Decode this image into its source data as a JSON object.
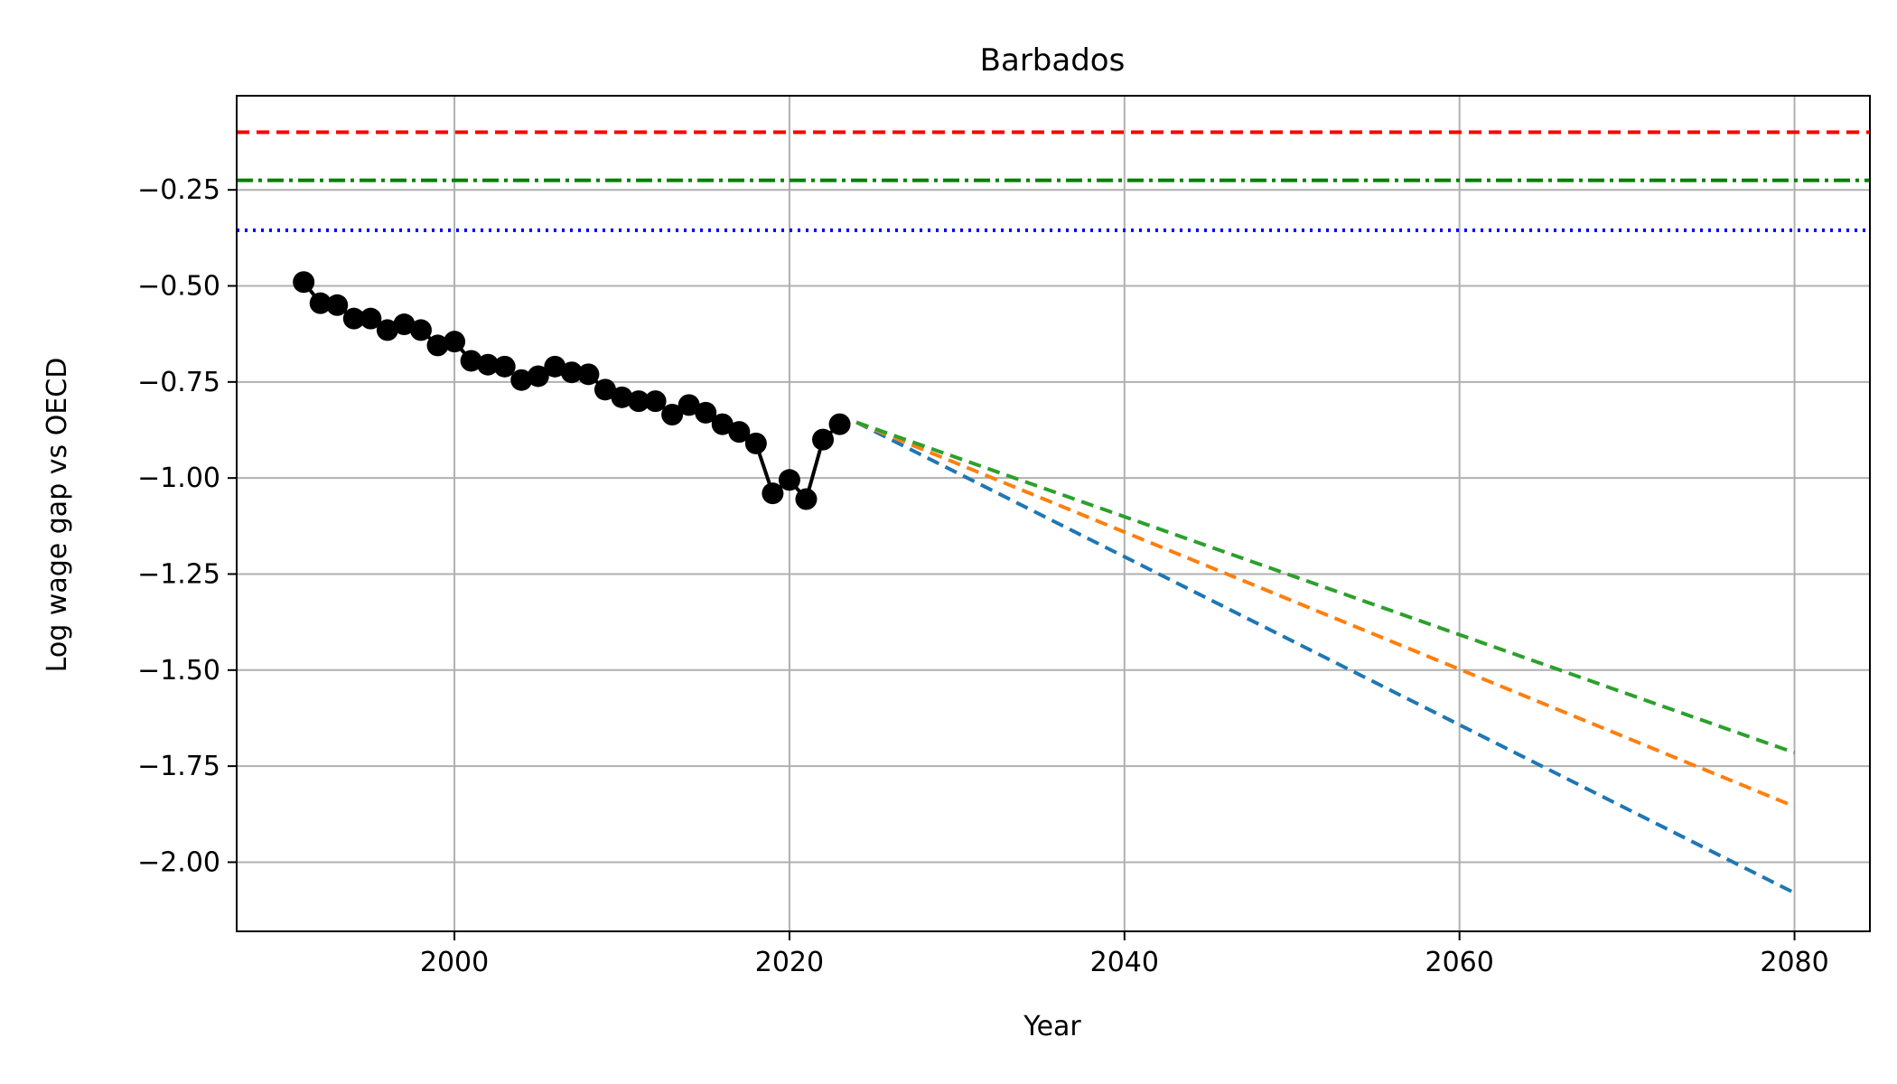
{
  "chart_data": {
    "type": "line",
    "title": "Barbados",
    "xlabel": "Year",
    "ylabel": "Log wage gap vs OECD",
    "xlim": [
      1987,
      2084.5
    ],
    "ylim": [
      -2.18,
      -0.005
    ],
    "xticks": [
      2000,
      2020,
      2040,
      2060,
      2080
    ],
    "yticks": [
      -0.25,
      -0.5,
      -0.75,
      -1.0,
      -1.25,
      -1.5,
      -1.75,
      -2.0
    ],
    "xtick_labels": [
      "2000",
      "2020",
      "2040",
      "2060",
      "2080"
    ],
    "ytick_labels": [
      "−0.25",
      "−0.50",
      "−0.75",
      "−1.00",
      "−1.25",
      "−1.50",
      "−1.75",
      "−2.00"
    ],
    "grid": true,
    "reference_lines": [
      {
        "y": -0.1,
        "color": "#ff0000",
        "style": "dashed"
      },
      {
        "y": -0.225,
        "color": "#008000",
        "style": "dashdot"
      },
      {
        "y": -0.355,
        "color": "#0000ff",
        "style": "dotted"
      }
    ],
    "history": {
      "color": "#000000",
      "x": [
        1991,
        1992,
        1993,
        1994,
        1995,
        1996,
        1997,
        1998,
        1999,
        2000,
        2001,
        2002,
        2003,
        2004,
        2005,
        2006,
        2007,
        2008,
        2009,
        2010,
        2011,
        2012,
        2013,
        2014,
        2015,
        2016,
        2017,
        2018,
        2019,
        2020,
        2021,
        2022,
        2023
      ],
      "y": [
        -0.49,
        -0.545,
        -0.55,
        -0.585,
        -0.585,
        -0.615,
        -0.6,
        -0.615,
        -0.655,
        -0.645,
        -0.695,
        -0.705,
        -0.71,
        -0.745,
        -0.735,
        -0.71,
        -0.725,
        -0.73,
        -0.77,
        -0.79,
        -0.8,
        -0.8,
        -0.835,
        -0.81,
        -0.83,
        -0.86,
        -0.88,
        -0.91,
        -1.04,
        -1.005,
        -1.055,
        -0.9,
        -0.86
      ]
    },
    "projections": [
      {
        "color": "#1f77b4",
        "x": [
          2024,
          2080
        ],
        "y": [
          -0.855,
          -2.08
        ]
      },
      {
        "color": "#ff7f0e",
        "x": [
          2024,
          2080
        ],
        "y": [
          -0.855,
          -1.855
        ]
      },
      {
        "color": "#2ca02c",
        "x": [
          2024,
          2080
        ],
        "y": [
          -0.855,
          -1.715
        ]
      }
    ]
  }
}
